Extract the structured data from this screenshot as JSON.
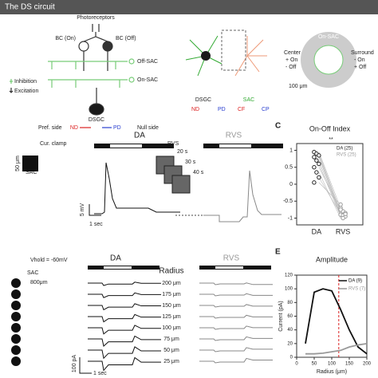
{
  "title": "The DS circuit",
  "panel_a": {
    "photoreceptors": "Photoreceptors",
    "bc_on": "BC (On)",
    "bc_off": "BC (Off)",
    "off_sac": "Off-SAC",
    "on_sac": "On-SAC",
    "inhibition": "Inhibition",
    "excitation": "Excitation",
    "dsgc": "DSGC",
    "pref_side": "Pref. side",
    "null_side": "Null side",
    "nd": "ND",
    "pd": "PD"
  },
  "panel_a2": {
    "dsgc": "DSGC",
    "sac": "SAC",
    "nd": "ND",
    "pd": "PD",
    "cf": "CF",
    "cp": "CP"
  },
  "panel_a3": {
    "on_sac": "On-SAC",
    "center": "Center",
    "center_on": "+ On",
    "center_off": "- Off",
    "surround": "Surround",
    "surround_on": "- On",
    "surround_off": "+ Off",
    "scale": "100 μm"
  },
  "panel_b": {
    "da": "DA",
    "rvs": "RVS",
    "clamp": "Cur. clamp",
    "sac": "SAC",
    "scale": "50 μm",
    "rvs_inset": "RVS",
    "t1": "20 s",
    "t2": "30 s",
    "t3": "40 s",
    "scale_v": "5 mV",
    "scale_t": "1 sec"
  },
  "panel_d": {
    "vhold": "Vhold = -60mV",
    "sac": "SAC",
    "scale": "800μm",
    "da": "DA",
    "rvs": "RVS",
    "radius": "Radius",
    "radii": [
      "200 μm",
      "175 μm",
      "150 μm",
      "125 μm",
      "100 μm",
      "75 μm",
      "50 μm",
      "25 μm"
    ],
    "scale_i": "100 pA",
    "scale_t": "1 sec"
  },
  "chart_c": {
    "type": "scatter",
    "letter": "C",
    "title": "On-Off Index",
    "significance": "**",
    "categories": [
      "DA",
      "RVS"
    ],
    "series": [
      {
        "name": "DA (25)",
        "color": "#222222",
        "values": [
          0.95,
          0.9,
          0.85,
          0.8,
          0.7,
          0.6,
          0.5,
          0.35,
          0.2,
          0.05
        ]
      },
      {
        "name": "RVS (25)",
        "color": "#9a9a9a",
        "values": [
          -0.7,
          -0.8,
          -0.85,
          -0.9,
          -0.92,
          -0.95,
          -0.75,
          -1,
          -0.88,
          -0.6
        ]
      }
    ],
    "ylim": [
      -1.2,
      1.2
    ],
    "yticks": [
      1,
      0.5,
      0,
      -0.5,
      -1
    ]
  },
  "chart_e": {
    "type": "line",
    "letter": "E",
    "title": "Amplitude",
    "x_label": "Radius (μm)",
    "y_label": "Current (pA)",
    "x": [
      25,
      50,
      75,
      100,
      125,
      150,
      175,
      200
    ],
    "series": [
      {
        "name": "DA (9)",
        "color": "#111111",
        "values": [
          20,
          95,
          100,
          97,
          70,
          40,
          15,
          5
        ]
      },
      {
        "name": "RVS (7)",
        "color": "#999999",
        "values": [
          5,
          5,
          6,
          8,
          10,
          15,
          18,
          20
        ]
      }
    ],
    "xlim": [
      0,
      200
    ],
    "ylim": [
      0,
      120
    ],
    "xticks": [
      0,
      50,
      100,
      150,
      200
    ],
    "yticks": [
      0,
      20,
      40,
      60,
      80,
      100,
      120
    ]
  }
}
